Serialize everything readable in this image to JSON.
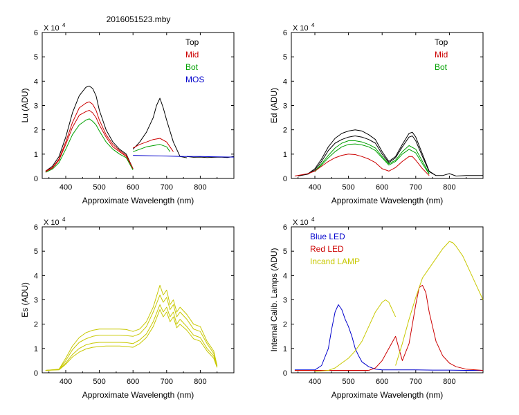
{
  "file_title": "2016051523.mby",
  "colors": {
    "top": "#000000",
    "mid": "#cc0000",
    "bot": "#00a000",
    "mos": "#0000cc",
    "es": "#c8c800",
    "blue_led": "#0000cc",
    "red_led": "#cc0000",
    "lamp": "#c8c800"
  },
  "chart_data": [
    {
      "id": "lu",
      "type": "line",
      "ylabel": "Lu (ADU)",
      "xlabel": "Approximate Wavelength (nm)",
      "scale_label": "X 10",
      "scale_exp": "4",
      "xlim": [
        330,
        900
      ],
      "ylim": [
        0,
        6
      ],
      "xticks": [
        400,
        500,
        600,
        700,
        800
      ],
      "yticks": [
        0,
        1,
        2,
        3,
        4,
        5,
        6
      ],
      "legend": [
        "Top",
        "Mid",
        "Bot",
        "MOS"
      ],
      "series": [
        {
          "name": "Top",
          "color": "#000000",
          "x": [
            340,
            360,
            380,
            400,
            420,
            440,
            460,
            470,
            480,
            490,
            500,
            520,
            540,
            560,
            580,
            600
          ],
          "y": [
            0.3,
            0.5,
            0.9,
            1.7,
            2.7,
            3.4,
            3.75,
            3.8,
            3.7,
            3.4,
            2.8,
            2.0,
            1.5,
            1.2,
            1.0,
            0.4
          ]
        },
        {
          "name": "Top",
          "color": "#000000",
          "x": [
            600,
            620,
            640,
            660,
            670,
            680,
            690,
            700,
            720,
            740,
            760
          ],
          "y": [
            1.2,
            1.5,
            1.9,
            2.5,
            3.0,
            3.3,
            2.9,
            2.4,
            1.5,
            0.9,
            0.85
          ]
        },
        {
          "name": "Top",
          "color": "#000000",
          "x": [
            760,
            780,
            800,
            820,
            840,
            860,
            880,
            900
          ],
          "y": [
            0.9,
            0.87,
            0.88,
            0.86,
            0.87,
            0.88,
            0.86,
            0.9
          ]
        },
        {
          "name": "Mid",
          "color": "#cc0000",
          "x": [
            340,
            360,
            380,
            400,
            420,
            440,
            460,
            470,
            480,
            490,
            500,
            520,
            540,
            560,
            580,
            600
          ],
          "y": [
            0.3,
            0.45,
            0.8,
            1.5,
            2.3,
            2.9,
            3.1,
            3.15,
            3.05,
            2.8,
            2.4,
            1.8,
            1.4,
            1.15,
            0.95,
            0.4
          ]
        },
        {
          "name": "Mid",
          "color": "#cc0000",
          "x": [
            600,
            620,
            640,
            660,
            680,
            700,
            720
          ],
          "y": [
            1.25,
            1.4,
            1.5,
            1.6,
            1.65,
            1.5,
            1.1
          ]
        },
        {
          "name": "Mid",
          "color": "#cc0000",
          "x": [
            340,
            360,
            380,
            400,
            420,
            440,
            460,
            470,
            480,
            490,
            500,
            520,
            540,
            560,
            580,
            600
          ],
          "y": [
            0.28,
            0.42,
            0.75,
            1.4,
            2.1,
            2.6,
            2.75,
            2.8,
            2.7,
            2.5,
            2.2,
            1.7,
            1.3,
            1.1,
            0.9,
            0.4
          ]
        },
        {
          "name": "Bot",
          "color": "#00a000",
          "x": [
            340,
            360,
            380,
            400,
            420,
            440,
            460,
            470,
            480,
            490,
            500,
            520,
            540,
            560,
            580,
            600
          ],
          "y": [
            0.25,
            0.38,
            0.65,
            1.2,
            1.8,
            2.2,
            2.4,
            2.45,
            2.35,
            2.2,
            1.95,
            1.5,
            1.2,
            1.0,
            0.85,
            0.35
          ]
        },
        {
          "name": "Bot",
          "color": "#00a000",
          "x": [
            600,
            620,
            640,
            660,
            680,
            700,
            710
          ],
          "y": [
            1.1,
            1.2,
            1.3,
            1.35,
            1.4,
            1.3,
            1.1
          ]
        },
        {
          "name": "MOS",
          "color": "#0000cc",
          "x": [
            600,
            650,
            700,
            750,
            800,
            850,
            900
          ],
          "y": [
            0.95,
            0.93,
            0.92,
            0.9,
            0.9,
            0.89,
            0.88
          ]
        }
      ]
    },
    {
      "id": "ed",
      "type": "line",
      "ylabel": "Ed  (ADU)",
      "xlabel": "Approximate Wavelength (nm)",
      "scale_label": "X 10",
      "scale_exp": "4",
      "xlim": [
        330,
        900
      ],
      "ylim": [
        0,
        6
      ],
      "xticks": [
        400,
        500,
        600,
        700,
        800
      ],
      "yticks": [
        0,
        1,
        2,
        3,
        4,
        5,
        6
      ],
      "legend": [
        "Top",
        "Mid",
        "Bot"
      ],
      "series": [
        {
          "name": "Top",
          "color": "#000000",
          "x": [
            350,
            380,
            400,
            420,
            440,
            460,
            480,
            500,
            520,
            540,
            560,
            580,
            600,
            620,
            640,
            660,
            680,
            690,
            700,
            720,
            740,
            760,
            780,
            800,
            820,
            850,
            900
          ],
          "y": [
            0.1,
            0.2,
            0.4,
            0.8,
            1.3,
            1.65,
            1.85,
            1.95,
            2.0,
            1.95,
            1.8,
            1.6,
            1.1,
            0.7,
            0.9,
            1.4,
            1.85,
            1.9,
            1.7,
            1.0,
            0.3,
            0.12,
            0.12,
            0.2,
            0.1,
            0.12,
            0.12
          ]
        },
        {
          "name": "Top",
          "color": "#000000",
          "x": [
            350,
            380,
            400,
            420,
            440,
            460,
            480,
            500,
            520,
            540,
            560,
            580,
            600,
            620,
            640,
            660,
            680,
            690,
            700,
            720,
            740,
            760
          ],
          "y": [
            0.1,
            0.18,
            0.35,
            0.7,
            1.15,
            1.45,
            1.6,
            1.7,
            1.75,
            1.7,
            1.6,
            1.45,
            1.0,
            0.65,
            0.85,
            1.3,
            1.7,
            1.75,
            1.55,
            0.9,
            0.28,
            0.12
          ]
        },
        {
          "name": "Bot",
          "color": "#00a000",
          "x": [
            400,
            420,
            440,
            460,
            480,
            500,
            520,
            540,
            560,
            580,
            600,
            620,
            640,
            660,
            680,
            700,
            720,
            740
          ],
          "y": [
            0.3,
            0.6,
            0.95,
            1.25,
            1.45,
            1.55,
            1.55,
            1.5,
            1.4,
            1.25,
            0.9,
            0.6,
            0.75,
            1.1,
            1.35,
            1.2,
            0.7,
            0.2
          ]
        },
        {
          "name": "Bot",
          "color": "#00a000",
          "x": [
            400,
            420,
            440,
            460,
            480,
            500,
            520,
            540,
            560,
            580,
            600,
            620,
            640,
            660,
            680,
            700,
            720,
            740
          ],
          "y": [
            0.28,
            0.55,
            0.85,
            1.1,
            1.3,
            1.4,
            1.42,
            1.38,
            1.3,
            1.15,
            0.85,
            0.55,
            0.7,
            1.0,
            1.2,
            1.05,
            0.6,
            0.18
          ]
        },
        {
          "name": "Mid",
          "color": "#cc0000",
          "x": [
            340,
            380,
            400,
            420,
            440,
            460,
            480,
            500,
            520,
            540,
            560,
            580,
            600,
            620,
            640,
            660,
            680,
            690,
            700,
            720,
            740
          ],
          "y": [
            0.1,
            0.2,
            0.3,
            0.5,
            0.7,
            0.85,
            0.95,
            1.0,
            0.98,
            0.9,
            0.8,
            0.65,
            0.4,
            0.3,
            0.45,
            0.7,
            0.9,
            0.9,
            0.75,
            0.4,
            0.12
          ]
        }
      ]
    },
    {
      "id": "es",
      "type": "line",
      "ylabel": "Es  (ADU)",
      "xlabel": "Approximate Wavelength (nm)",
      "scale_label": "X 10",
      "scale_exp": "4",
      "xlim": [
        330,
        900
      ],
      "ylim": [
        0,
        6
      ],
      "xticks": [
        400,
        500,
        600,
        700,
        800
      ],
      "yticks": [
        0,
        1,
        2,
        3,
        4,
        5,
        6
      ],
      "legend": [],
      "series": [
        {
          "name": "Es",
          "color": "#c8c800",
          "x": [
            340,
            380,
            400,
            420,
            440,
            460,
            480,
            500,
            520,
            540,
            560,
            580,
            600,
            620,
            640,
            660,
            680,
            690,
            700,
            710,
            720,
            730,
            740,
            760,
            780,
            800,
            820,
            840,
            850
          ],
          "y": [
            0.1,
            0.15,
            0.6,
            1.1,
            1.45,
            1.65,
            1.75,
            1.8,
            1.8,
            1.8,
            1.8,
            1.78,
            1.7,
            1.8,
            2.1,
            2.7,
            3.6,
            3.2,
            3.4,
            2.8,
            3.0,
            2.5,
            2.7,
            2.4,
            2.0,
            1.9,
            1.3,
            0.9,
            0.3
          ]
        },
        {
          "name": "Es",
          "color": "#c8c800",
          "x": [
            340,
            380,
            400,
            420,
            440,
            460,
            480,
            500,
            520,
            540,
            560,
            580,
            600,
            620,
            640,
            660,
            680,
            690,
            700,
            710,
            720,
            730,
            740,
            760,
            780,
            800,
            820,
            840,
            850
          ],
          "y": [
            0.1,
            0.14,
            0.5,
            0.95,
            1.25,
            1.4,
            1.5,
            1.55,
            1.55,
            1.55,
            1.55,
            1.53,
            1.5,
            1.6,
            1.9,
            2.5,
            3.2,
            2.9,
            3.1,
            2.6,
            2.8,
            2.3,
            2.5,
            2.2,
            1.8,
            1.7,
            1.2,
            0.8,
            0.28
          ]
        },
        {
          "name": "Es",
          "color": "#c8c800",
          "x": [
            340,
            380,
            400,
            420,
            440,
            460,
            480,
            500,
            520,
            540,
            560,
            580,
            600,
            620,
            640,
            660,
            680,
            690,
            700,
            710,
            720,
            730,
            740,
            760,
            780,
            800,
            820,
            840,
            850
          ],
          "y": [
            0.1,
            0.13,
            0.4,
            0.75,
            1.0,
            1.15,
            1.22,
            1.25,
            1.25,
            1.25,
            1.25,
            1.24,
            1.2,
            1.35,
            1.6,
            2.1,
            2.8,
            2.5,
            2.7,
            2.3,
            2.5,
            2.0,
            2.2,
            1.9,
            1.55,
            1.45,
            1.0,
            0.7,
            0.25
          ]
        },
        {
          "name": "Es",
          "color": "#c8c800",
          "x": [
            340,
            380,
            400,
            420,
            440,
            460,
            480,
            500,
            520,
            540,
            560,
            580,
            600,
            620,
            640,
            660,
            680,
            690,
            700,
            710,
            720,
            730,
            740,
            760,
            780,
            800,
            820,
            840,
            850
          ],
          "y": [
            0.1,
            0.12,
            0.35,
            0.65,
            0.85,
            0.98,
            1.05,
            1.08,
            1.1,
            1.1,
            1.1,
            1.08,
            1.05,
            1.2,
            1.45,
            1.9,
            2.6,
            2.3,
            2.5,
            2.1,
            2.3,
            1.85,
            2.0,
            1.75,
            1.4,
            1.3,
            0.9,
            0.6,
            0.22
          ]
        }
      ]
    },
    {
      "id": "lamps",
      "type": "line",
      "ylabel": "Internal Calib. Lamps (ADU)",
      "xlabel": "Approximate Wavelength (nm)",
      "scale_label": "X 10",
      "scale_exp": "4",
      "xlim": [
        330,
        900
      ],
      "ylim": [
        0,
        6
      ],
      "xticks": [
        400,
        500,
        600,
        700,
        800
      ],
      "yticks": [
        0,
        1,
        2,
        3,
        4,
        5,
        6
      ],
      "legend": [
        "Blue LED",
        "Red LED",
        "Incand LAMP"
      ],
      "series": [
        {
          "name": "Blue LED",
          "color": "#0000cc",
          "x": [
            340,
            400,
            420,
            440,
            450,
            460,
            470,
            480,
            490,
            500,
            510,
            520,
            530,
            540,
            560,
            580,
            600,
            650,
            700,
            750,
            800,
            850,
            900
          ],
          "y": [
            0.12,
            0.12,
            0.3,
            1.0,
            1.8,
            2.5,
            2.8,
            2.6,
            2.2,
            1.9,
            1.5,
            1.0,
            0.7,
            0.45,
            0.25,
            0.15,
            0.12,
            0.12,
            0.12,
            0.11,
            0.11,
            0.1,
            0.1
          ]
        },
        {
          "name": "Red LED",
          "color": "#cc0000",
          "x": [
            560,
            580,
            600,
            620,
            640,
            660,
            680,
            700,
            710,
            720,
            730,
            740,
            760,
            780,
            800,
            820,
            850,
            900
          ],
          "y": [
            0.1,
            0.2,
            0.5,
            1.0,
            1.5,
            0.5,
            1.2,
            2.8,
            3.5,
            3.6,
            3.3,
            2.5,
            1.3,
            0.7,
            0.4,
            0.25,
            0.15,
            0.1
          ]
        },
        {
          "name": "Red LED",
          "color": "#cc0000",
          "x": [
            340,
            400,
            500,
            560
          ],
          "y": [
            0.1,
            0.1,
            0.1,
            0.1
          ]
        },
        {
          "name": "Incand LAMP",
          "color": "#c8c800",
          "x": [
            400,
            440,
            460,
            480,
            500,
            520,
            540,
            560,
            580,
            600,
            610,
            620,
            630,
            640
          ],
          "y": [
            0.05,
            0.1,
            0.2,
            0.4,
            0.6,
            0.9,
            1.3,
            1.9,
            2.5,
            2.9,
            3.0,
            2.9,
            2.6,
            2.3
          ]
        },
        {
          "name": "Incand LAMP",
          "color": "#c8c800",
          "x": [
            640,
            660,
            680,
            700,
            720,
            740,
            760,
            780,
            800,
            810,
            820,
            840,
            860,
            880,
            900
          ],
          "y": [
            0.3,
            1.2,
            2.2,
            3.1,
            3.9,
            4.3,
            4.7,
            5.1,
            5.4,
            5.35,
            5.2,
            4.8,
            4.2,
            3.6,
            3.0
          ]
        }
      ]
    }
  ]
}
